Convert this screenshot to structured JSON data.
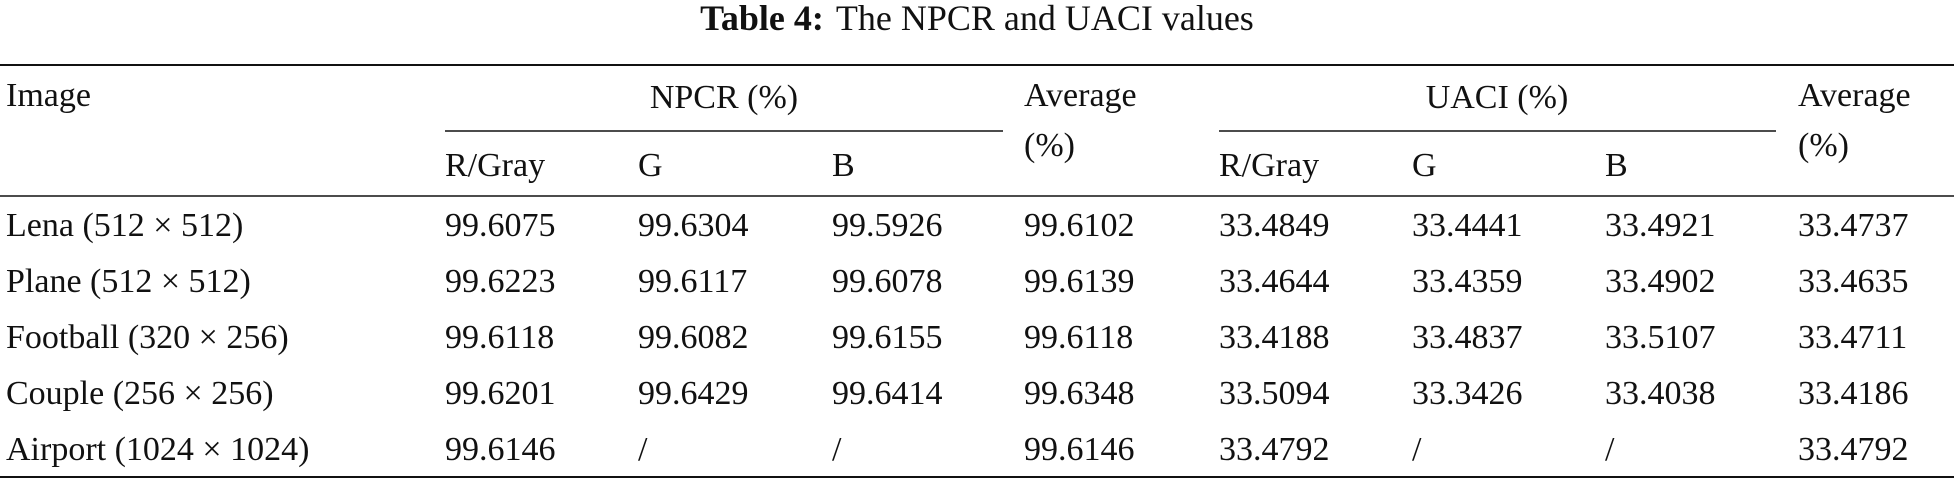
{
  "title": {
    "label": "Table 4:",
    "text": "The NPCR and UACI values"
  },
  "table": {
    "header": {
      "image": "Image",
      "npcr": "NPCR (%)",
      "npcr_average": [
        "Average",
        "(%)"
      ],
      "uaci": "UACI (%)",
      "uaci_average": [
        "Average",
        "(%)"
      ],
      "sub": [
        "R/Gray",
        "G",
        "B",
        "R/Gray",
        "G",
        "B"
      ]
    },
    "rows": [
      [
        "Lena (512 × 512)",
        "99.6075",
        "99.6304",
        "99.5926",
        "99.6102",
        "33.4849",
        "33.4441",
        "33.4921",
        "33.4737"
      ],
      [
        "Plane (512 × 512)",
        "99.6223",
        "99.6117",
        "99.6078",
        "99.6139",
        "33.4644",
        "33.4359",
        "33.4902",
        "33.4635"
      ],
      [
        "Football (320 × 256)",
        "99.6118",
        "99.6082",
        "99.6155",
        "99.6118",
        "33.4188",
        "33.4837",
        "33.5107",
        "33.4711"
      ],
      [
        "Couple (256 × 256)",
        "99.6201",
        "99.6429",
        "99.6414",
        "99.6348",
        "33.5094",
        "33.3426",
        "33.4038",
        "33.4186"
      ],
      [
        "Airport (1024 × 1024)",
        "99.6146",
        "/",
        "/",
        "99.6146",
        "33.4792",
        "/",
        "/",
        "33.4792"
      ]
    ]
  }
}
